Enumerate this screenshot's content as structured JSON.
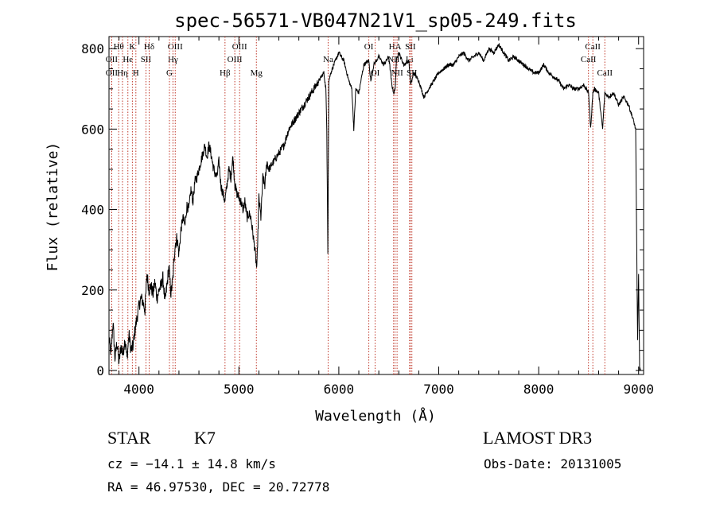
{
  "chart_data": {
    "type": "line",
    "title": "spec-56571-VB047N21V1_sp05-249.fits",
    "xlabel": "Wavelength (Å)",
    "ylabel": "Flux (relative)",
    "xlim": [
      3700,
      9050
    ],
    "ylim": [
      -10,
      830
    ],
    "xticks": [
      4000,
      5000,
      6000,
      7000,
      8000,
      9000
    ],
    "yticks": [
      0,
      200,
      400,
      600,
      800
    ],
    "grid": false,
    "series": [
      {
        "name": "flux",
        "x": [
          3700,
          3720,
          3740,
          3760,
          3780,
          3800,
          3820,
          3840,
          3860,
          3880,
          3900,
          3920,
          3940,
          3960,
          3980,
          4000,
          4020,
          4040,
          4060,
          4080,
          4100,
          4120,
          4140,
          4160,
          4180,
          4200,
          4220,
          4240,
          4260,
          4280,
          4300,
          4320,
          4340,
          4360,
          4380,
          4400,
          4420,
          4440,
          4460,
          4480,
          4500,
          4520,
          4540,
          4560,
          4580,
          4600,
          4620,
          4640,
          4660,
          4680,
          4700,
          4720,
          4740,
          4760,
          4780,
          4800,
          4820,
          4840,
          4860,
          4880,
          4900,
          4920,
          4940,
          4960,
          4980,
          5000,
          5020,
          5040,
          5060,
          5080,
          5100,
          5120,
          5140,
          5160,
          5180,
          5200,
          5220,
          5240,
          5260,
          5280,
          5300,
          5350,
          5400,
          5450,
          5500,
          5550,
          5600,
          5650,
          5700,
          5750,
          5800,
          5850,
          5870,
          5880,
          5890,
          5895,
          5900,
          5920,
          5950,
          6000,
          6050,
          6100,
          6130,
          6150,
          6170,
          6200,
          6250,
          6300,
          6320,
          6350,
          6400,
          6450,
          6500,
          6530,
          6550,
          6563,
          6580,
          6600,
          6650,
          6700,
          6720,
          6750,
          6800,
          6850,
          6900,
          6950,
          7000,
          7050,
          7100,
          7150,
          7200,
          7250,
          7300,
          7350,
          7400,
          7450,
          7500,
          7550,
          7600,
          7650,
          7700,
          7750,
          7800,
          7850,
          7900,
          7950,
          8000,
          8050,
          8100,
          8150,
          8200,
          8250,
          8300,
          8350,
          8400,
          8450,
          8500,
          8520,
          8542,
          8560,
          8600,
          8640,
          8662,
          8700,
          8750,
          8800,
          8850,
          8900,
          8950,
          8970,
          8990,
          9000,
          9010,
          9020
        ],
        "y": [
          80,
          40,
          120,
          30,
          70,
          20,
          60,
          40,
          80,
          30,
          90,
          50,
          60,
          100,
          130,
          160,
          180,
          170,
          150,
          240,
          200,
          210,
          190,
          220,
          180,
          200,
          210,
          230,
          170,
          210,
          260,
          190,
          230,
          310,
          330,
          290,
          350,
          380,
          360,
          410,
          400,
          450,
          420,
          470,
          480,
          500,
          520,
          540,
          560,
          530,
          560,
          540,
          510,
          490,
          480,
          520,
          460,
          440,
          420,
          460,
          500,
          480,
          530,
          460,
          440,
          430,
          420,
          400,
          420,
          380,
          390,
          380,
          340,
          300,
          250,
          430,
          380,
          480,
          460,
          520,
          500,
          520,
          540,
          560,
          600,
          620,
          640,
          660,
          680,
          700,
          720,
          740,
          700,
          600,
          290,
          500,
          720,
          740,
          760,
          790,
          770,
          720,
          700,
          600,
          700,
          690,
          760,
          770,
          720,
          760,
          780,
          760,
          780,
          710,
          690,
          700,
          780,
          790,
          760,
          770,
          710,
          740,
          720,
          680,
          700,
          720,
          740,
          750,
          760,
          760,
          780,
          790,
          770,
          780,
          790,
          770,
          800,
          790,
          810,
          790,
          770,
          780,
          770,
          760,
          750,
          740,
          740,
          760,
          740,
          730,
          720,
          700,
          710,
          700,
          700,
          710,
          690,
          600,
          690,
          700,
          690,
          600,
          690,
          680,
          690,
          660,
          680,
          660,
          620,
          600,
          80,
          240,
          0,
          0
        ]
      }
    ],
    "line_markers": [
      {
        "label": "Hθ",
        "wl": 3797,
        "row": 1
      },
      {
        "label": "OII",
        "wl": 3727,
        "row": 2
      },
      {
        "label": "OII",
        "wl": 3727,
        "row": 3
      },
      {
        "label": "He",
        "wl": 3889,
        "row": 2
      },
      {
        "label": "Hη",
        "wl": 3835,
        "row": 3
      },
      {
        "label": "K",
        "wl": 3934,
        "row": 1
      },
      {
        "label": "SII",
        "wl": 4070,
        "row": 2
      },
      {
        "label": "H",
        "wl": 3969,
        "row": 3
      },
      {
        "label": "Hδ",
        "wl": 4102,
        "row": 1
      },
      {
        "label": "OIII",
        "wl": 4363,
        "row": 1
      },
      {
        "label": "Hγ",
        "wl": 4340,
        "row": 2
      },
      {
        "label": "G",
        "wl": 4305,
        "row": 3
      },
      {
        "label": "OIII",
        "wl": 5007,
        "row": 1
      },
      {
        "label": "OIII",
        "wl": 4959,
        "row": 2
      },
      {
        "label": "Hβ",
        "wl": 4861,
        "row": 3
      },
      {
        "label": "Mg",
        "wl": 5175,
        "row": 3
      },
      {
        "label": "Na",
        "wl": 5893,
        "row": 2
      },
      {
        "label": "OI",
        "wl": 6300,
        "row": 1
      },
      {
        "label": "OI",
        "wl": 6363,
        "row": 3
      },
      {
        "label": "HA",
        "wl": 6563,
        "row": 1
      },
      {
        "label": "NII",
        "wl": 6548,
        "row": 2
      },
      {
        "label": "NII",
        "wl": 6583,
        "row": 3
      },
      {
        "label": "SII",
        "wl": 6716,
        "row": 1
      },
      {
        "label": "Li",
        "wl": 6708,
        "row": 2
      },
      {
        "label": "SII",
        "wl": 6731,
        "row": 3
      },
      {
        "label": "CaII",
        "wl": 8542,
        "row": 1
      },
      {
        "label": "CaII",
        "wl": 8498,
        "row": 2
      },
      {
        "label": "CaII",
        "wl": 8662,
        "row": 3
      }
    ]
  },
  "info": {
    "class": "STAR",
    "subclass": "K7",
    "survey": "LAMOST DR3",
    "cz": "cz = −14.1 ± 14.8 km/s",
    "obs_date": "Obs-Date: 20131005",
    "radec": "RA =  46.97530, DEC =  20.72778"
  }
}
